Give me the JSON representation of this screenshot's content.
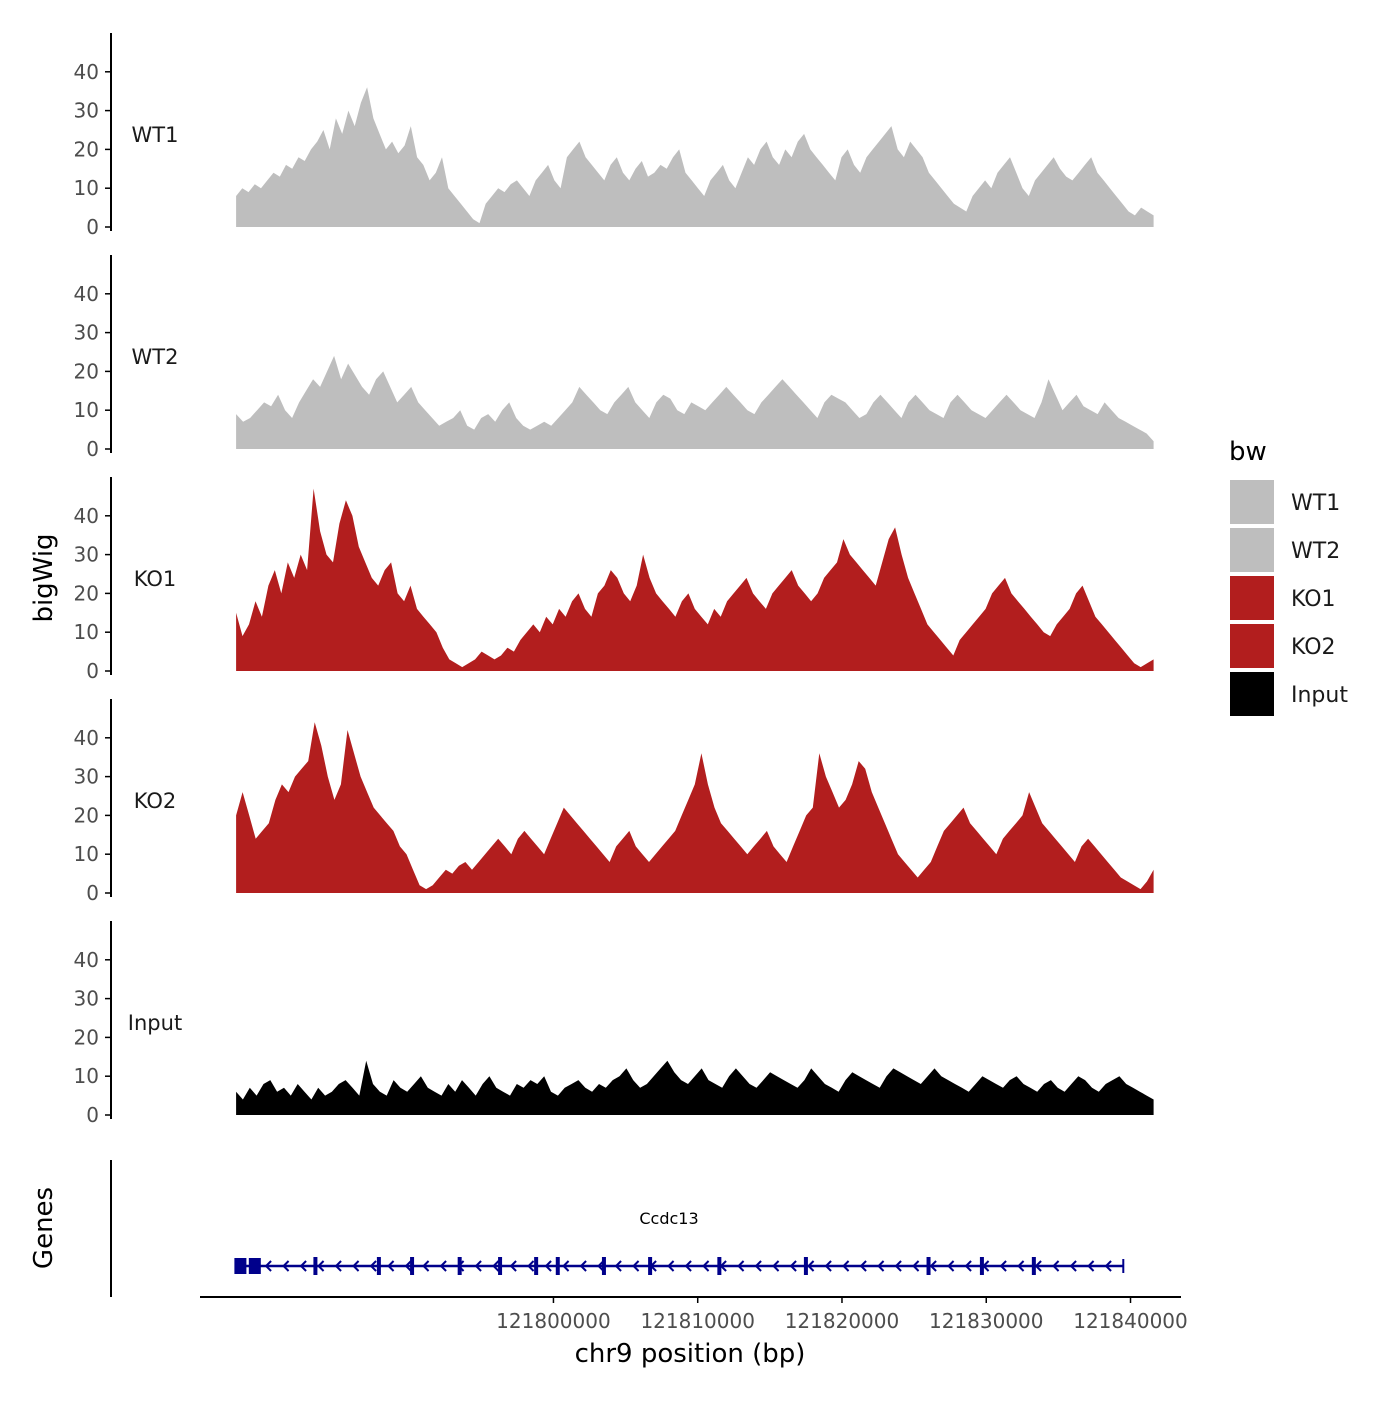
{
  "colors": {
    "wt": "#BEBEBE",
    "ko": "#B21E1E",
    "input": "#000000",
    "gene": "#00008B",
    "axis": "#000000",
    "tick_text": "#4D4D4D"
  },
  "chart_data": {
    "type": "area",
    "title": "",
    "xlabel": "chr9 position (bp)",
    "ylabel_tracks": "bigWig",
    "ylabel_genes": "Genes",
    "xlim": [
      121775500,
      121843500
    ],
    "ylim": [
      0,
      50
    ],
    "y_ticks": [
      0,
      10,
      20,
      30,
      40
    ],
    "x_ticks": [
      121800000,
      121810000,
      121820000,
      121830000,
      121840000
    ],
    "x_tick_labels": [
      "121800000",
      "121810000",
      "121820000",
      "121830000",
      "121840000"
    ],
    "x_start": 121778000,
    "x_end": 121841600,
    "series": [
      {
        "name": "WT1",
        "color": "#BEBEBE",
        "values": [
          8,
          10,
          9,
          11,
          10,
          12,
          14,
          13,
          16,
          15,
          18,
          17,
          20,
          22,
          25,
          20,
          28,
          24,
          30,
          26,
          32,
          36,
          28,
          24,
          20,
          22,
          19,
          21,
          26,
          18,
          16,
          12,
          14,
          18,
          10,
          8,
          6,
          4,
          2,
          1,
          6,
          8,
          10,
          9,
          11,
          12,
          10,
          8,
          12,
          14,
          16,
          12,
          10,
          18,
          20,
          22,
          18,
          16,
          14,
          12,
          16,
          18,
          14,
          12,
          15,
          17,
          13,
          14,
          16,
          15,
          18,
          20,
          14,
          12,
          10,
          8,
          12,
          14,
          16,
          12,
          10,
          14,
          18,
          16,
          20,
          22,
          18,
          16,
          20,
          18,
          22,
          24,
          20,
          18,
          16,
          14,
          12,
          18,
          20,
          16,
          14,
          18,
          20,
          22,
          24,
          26,
          20,
          18,
          22,
          20,
          18,
          14,
          12,
          10,
          8,
          6,
          5,
          4,
          8,
          10,
          12,
          10,
          14,
          16,
          18,
          14,
          10,
          8,
          12,
          14,
          16,
          18,
          15,
          13,
          12,
          14,
          16,
          18,
          14,
          12,
          10,
          8,
          6,
          4,
          3,
          5,
          4,
          3
        ]
      },
      {
        "name": "WT2",
        "color": "#BEBEBE",
        "values": [
          9,
          7,
          8,
          10,
          12,
          11,
          14,
          10,
          8,
          12,
          15,
          18,
          16,
          20,
          24,
          18,
          22,
          19,
          16,
          14,
          18,
          20,
          16,
          12,
          14,
          16,
          12,
          10,
          8,
          6,
          7,
          8,
          10,
          6,
          5,
          8,
          9,
          7,
          10,
          12,
          8,
          6,
          5,
          6,
          7,
          6,
          8,
          10,
          12,
          16,
          14,
          12,
          10,
          9,
          12,
          14,
          16,
          12,
          10,
          8,
          12,
          14,
          13,
          10,
          9,
          12,
          11,
          10,
          12,
          14,
          16,
          14,
          12,
          10,
          9,
          12,
          14,
          16,
          18,
          16,
          14,
          12,
          10,
          8,
          12,
          14,
          13,
          12,
          10,
          8,
          9,
          12,
          14,
          12,
          10,
          8,
          12,
          14,
          12,
          10,
          9,
          8,
          12,
          14,
          12,
          10,
          9,
          8,
          10,
          12,
          14,
          12,
          10,
          9,
          8,
          12,
          18,
          14,
          10,
          12,
          14,
          11,
          10,
          9,
          12,
          10,
          8,
          7,
          6,
          5,
          4,
          2
        ]
      },
      {
        "name": "KO1",
        "color": "#B21E1E",
        "values": [
          15,
          9,
          12,
          18,
          14,
          22,
          26,
          20,
          28,
          24,
          30,
          26,
          47,
          36,
          30,
          28,
          38,
          44,
          40,
          32,
          28,
          24,
          22,
          26,
          28,
          20,
          18,
          22,
          16,
          14,
          12,
          10,
          6,
          3,
          2,
          1,
          2,
          3,
          5,
          4,
          3,
          4,
          6,
          5,
          8,
          10,
          12,
          10,
          14,
          12,
          16,
          14,
          18,
          20,
          16,
          14,
          20,
          22,
          26,
          24,
          20,
          18,
          22,
          30,
          24,
          20,
          18,
          16,
          14,
          18,
          20,
          16,
          14,
          12,
          16,
          14,
          18,
          20,
          22,
          24,
          20,
          18,
          16,
          20,
          22,
          24,
          26,
          22,
          20,
          18,
          20,
          24,
          26,
          28,
          34,
          30,
          28,
          26,
          24,
          22,
          28,
          34,
          37,
          30,
          24,
          20,
          16,
          12,
          10,
          8,
          6,
          4,
          8,
          10,
          12,
          14,
          16,
          20,
          22,
          24,
          20,
          18,
          16,
          14,
          12,
          10,
          9,
          12,
          14,
          16,
          20,
          22,
          18,
          14,
          12,
          10,
          8,
          6,
          4,
          2,
          1,
          2,
          3
        ]
      },
      {
        "name": "KO2",
        "color": "#B21E1E",
        "values": [
          20,
          26,
          20,
          14,
          16,
          18,
          24,
          28,
          26,
          30,
          32,
          34,
          44,
          38,
          30,
          24,
          28,
          42,
          36,
          30,
          26,
          22,
          20,
          18,
          16,
          12,
          10,
          6,
          2,
          1,
          2,
          4,
          6,
          5,
          7,
          8,
          6,
          8,
          10,
          12,
          14,
          12,
          10,
          14,
          16,
          14,
          12,
          10,
          14,
          18,
          22,
          20,
          18,
          16,
          14,
          12,
          10,
          8,
          12,
          14,
          16,
          12,
          10,
          8,
          10,
          12,
          14,
          16,
          20,
          24,
          28,
          36,
          28,
          22,
          18,
          16,
          14,
          12,
          10,
          12,
          14,
          16,
          12,
          10,
          8,
          12,
          16,
          20,
          22,
          36,
          30,
          26,
          22,
          24,
          28,
          34,
          32,
          26,
          22,
          18,
          14,
          10,
          8,
          6,
          4,
          6,
          8,
          12,
          16,
          18,
          20,
          22,
          18,
          16,
          14,
          12,
          10,
          14,
          16,
          18,
          20,
          26,
          22,
          18,
          16,
          14,
          12,
          10,
          8,
          12,
          14,
          12,
          10,
          8,
          6,
          4,
          3,
          2,
          1,
          3,
          6
        ]
      },
      {
        "name": "Input",
        "color": "#000000",
        "values": [
          6,
          4,
          7,
          5,
          8,
          9,
          6,
          7,
          5,
          8,
          6,
          4,
          7,
          5,
          6,
          8,
          9,
          7,
          5,
          14,
          8,
          6,
          5,
          9,
          7,
          6,
          8,
          10,
          7,
          6,
          5,
          8,
          6,
          9,
          7,
          5,
          8,
          10,
          7,
          6,
          5,
          8,
          7,
          9,
          8,
          10,
          6,
          5,
          7,
          8,
          9,
          7,
          6,
          8,
          7,
          9,
          10,
          12,
          9,
          7,
          8,
          10,
          12,
          14,
          11,
          9,
          8,
          10,
          12,
          9,
          8,
          7,
          10,
          12,
          10,
          8,
          7,
          9,
          11,
          10,
          9,
          8,
          7,
          9,
          12,
          10,
          8,
          7,
          6,
          9,
          11,
          10,
          9,
          8,
          7,
          10,
          12,
          11,
          10,
          9,
          8,
          10,
          12,
          10,
          9,
          8,
          7,
          6,
          8,
          10,
          9,
          8,
          7,
          9,
          10,
          8,
          7,
          6,
          8,
          9,
          7,
          6,
          8,
          10,
          9,
          7,
          6,
          8,
          9,
          10,
          8,
          7,
          6,
          5,
          4
        ]
      }
    ],
    "genes": [
      {
        "name": "Ccdc13",
        "strand": "-",
        "start": 121778000,
        "end": 121839500,
        "exons": [
          121778300,
          121779300,
          121783500,
          121787900,
          121790200,
          121793500,
          121796300,
          121798800,
          121800300,
          121803500,
          121806700,
          121811500,
          121817500,
          121826000,
          121829700,
          121833300
        ]
      }
    ]
  },
  "legend": {
    "title": "bw",
    "items": [
      {
        "label": "WT1",
        "color": "#BEBEBE"
      },
      {
        "label": "WT2",
        "color": "#BEBEBE"
      },
      {
        "label": "KO1",
        "color": "#B21E1E"
      },
      {
        "label": "KO2",
        "color": "#B21E1E"
      },
      {
        "label": "Input",
        "color": "#000000"
      }
    ]
  }
}
